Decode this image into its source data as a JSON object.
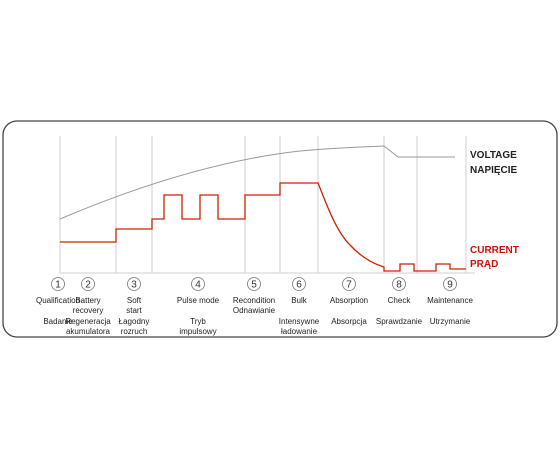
{
  "colors": {
    "voltage": "#9a9a9a",
    "current": "#cc2200",
    "voltage_label": "#222222",
    "current_label": "#cc1100",
    "frame": "#444444",
    "separator": "#cfcfcf"
  },
  "labels": {
    "voltage_en": "VOLTAGE",
    "voltage_pl": "NAPIĘCIE",
    "current_en": "CURRENT",
    "current_pl": "PRĄD"
  },
  "stages": [
    {
      "num": "1",
      "en": [
        "Qualification"
      ],
      "pl": [
        "Badanie"
      ]
    },
    {
      "num": "2",
      "en": [
        "Battery",
        "recovery"
      ],
      "pl": [
        "Regeneracja",
        "akumulatora"
      ]
    },
    {
      "num": "3",
      "en": [
        "Soft",
        "start"
      ],
      "pl": [
        "Łagodny",
        "rozruch"
      ]
    },
    {
      "num": "4",
      "en": [
        "Pulse mode"
      ],
      "pl": [
        "Tryb",
        "impulsowy"
      ]
    },
    {
      "num": "5",
      "en": [
        "Recondition",
        "Odnawianie"
      ],
      "pl": []
    },
    {
      "num": "6",
      "en": [
        "Bulk"
      ],
      "pl": [
        "Intensywne",
        "ładowanie"
      ]
    },
    {
      "num": "7",
      "en": [
        "Absorption"
      ],
      "pl": [
        "Absorpcja"
      ]
    },
    {
      "num": "8",
      "en": [
        "Check"
      ],
      "pl": [
        "Sprawdzanie"
      ]
    },
    {
      "num": "9",
      "en": [
        "Maintenance"
      ],
      "pl": [
        "Utrzymanie"
      ]
    }
  ]
}
